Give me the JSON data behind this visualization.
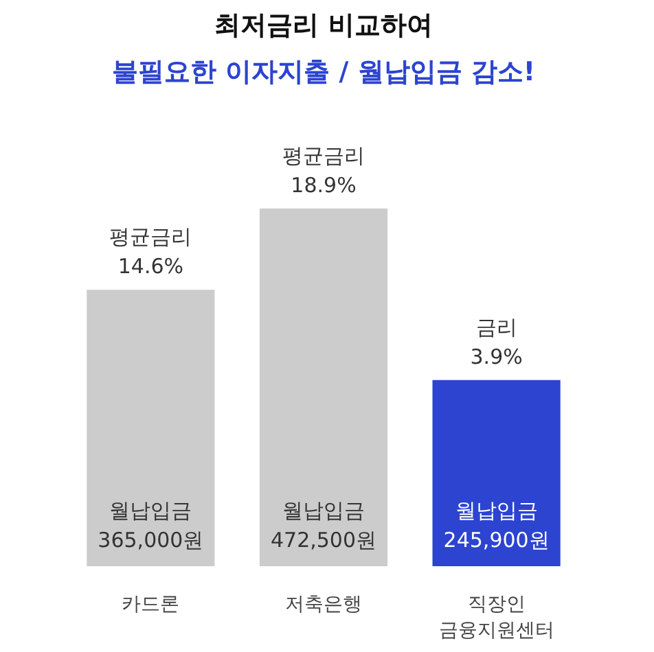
{
  "chart_data": {
    "type": "bar",
    "title": "최저금리 비교하여",
    "subtitle": "불필요한 이자지출 / 월납입금 감소!",
    "categories": [
      "카드론",
      "저축은행",
      "직장인\n금융지원센터"
    ],
    "grid": false,
    "series": [
      {
        "colors": [
          "#cccccc",
          "#cccccc",
          "#2c44d0"
        ],
        "values": [
          365000,
          472500,
          245900
        ],
        "value_labels": [
          "월납입금\n365,000원",
          "월납입금\n472,500원",
          "월납입금\n245,900원"
        ]
      }
    ],
    "annotations": [
      "평균금리\n14.6%",
      "평균금리\n18.9%",
      "금리\n3.9%"
    ]
  }
}
